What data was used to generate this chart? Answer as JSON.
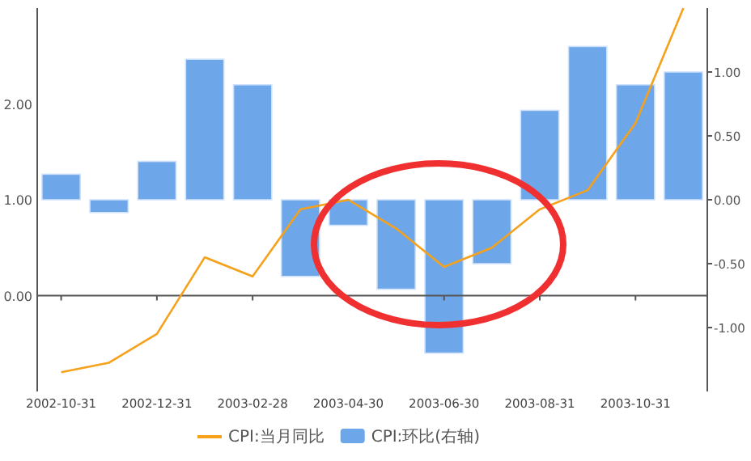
{
  "chart_data": {
    "type": "bar",
    "categories": [
      "2002-10-31",
      null,
      "2002-12-31",
      null,
      "2003-02-28",
      null,
      "2003-04-30",
      null,
      "2003-06-30",
      null,
      "2003-08-31",
      null,
      "2003-10-31",
      null
    ],
    "series": [
      {
        "name": "CPI:当月同比",
        "type": "line",
        "color": "#f5a11c",
        "values": [
          -0.8,
          -0.7,
          -0.4,
          0.4,
          0.2,
          0.9,
          1.0,
          0.7,
          0.3,
          0.5,
          0.9,
          1.1,
          1.8,
          3.0
        ]
      },
      {
        "name": "CPI:环比(右轴)",
        "axis": "y2",
        "color": "#6ea6ea",
        "values": [
          0.2,
          -0.1,
          0.3,
          1.1,
          0.9,
          -0.6,
          -0.2,
          -0.7,
          -1.2,
          -0.5,
          0.7,
          1.2,
          0.9,
          1.0
        ]
      }
    ],
    "ylim": [
      -1,
      3
    ],
    "yticks": [
      {
        "value": 0,
        "label": "0.00"
      },
      {
        "value": 1,
        "label": "1.00"
      },
      {
        "value": 2,
        "label": "2.00"
      }
    ],
    "y2lim": [
      -1.5,
      1.5
    ],
    "y2ticks": [
      {
        "value": -1,
        "label": "-1.00"
      },
      {
        "value": -0.5,
        "label": "-0.50"
      },
      {
        "value": 0,
        "label": "0.00"
      },
      {
        "value": 0.5,
        "label": "0.50"
      },
      {
        "value": 1,
        "label": "1.00"
      }
    ],
    "legend": "bottom"
  }
}
